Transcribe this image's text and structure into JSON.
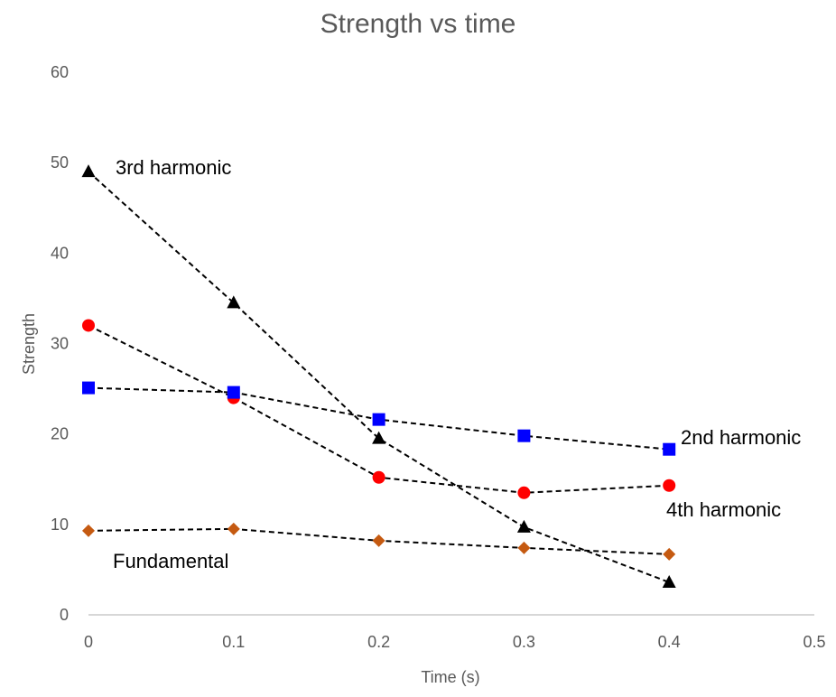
{
  "chart_data": {
    "type": "scatter",
    "title": "Strength vs time",
    "xlabel": "Time (s)",
    "ylabel": "Strength",
    "xlim": [
      0,
      0.5
    ],
    "ylim": [
      0,
      60
    ],
    "x_ticks": [
      "0",
      "0.1",
      "0.2",
      "0.3",
      "0.4",
      "0.5"
    ],
    "y_ticks": [
      "0",
      "10",
      "20",
      "30",
      "40",
      "50",
      "60"
    ],
    "grid": false,
    "legend": "none",
    "series": [
      {
        "label": "3rd harmonic",
        "marker": "triangle",
        "color": "#000000",
        "x": [
          0,
          0.1,
          0.2,
          0.3,
          0.4
        ],
        "y": [
          49,
          34.5,
          19.5,
          9.7,
          3.6
        ]
      },
      {
        "label": "4th harmonic",
        "marker": "circle",
        "color": "#ff0000",
        "x": [
          0,
          0.1,
          0.2,
          0.3,
          0.4
        ],
        "y": [
          32,
          24,
          15.2,
          13.5,
          14.3
        ]
      },
      {
        "label": "2nd harmonic",
        "marker": "square",
        "color": "#0000ff",
        "x": [
          0,
          0.1,
          0.2,
          0.3,
          0.4
        ],
        "y": [
          25.1,
          24.6,
          21.6,
          19.8,
          18.3
        ]
      },
      {
        "label": "Fundamental",
        "marker": "diamond",
        "color": "#c55a11",
        "x": [
          0,
          0.1,
          0.2,
          0.3,
          0.4
        ],
        "y": [
          9.3,
          9.5,
          8.2,
          7.4,
          6.7
        ]
      }
    ]
  }
}
